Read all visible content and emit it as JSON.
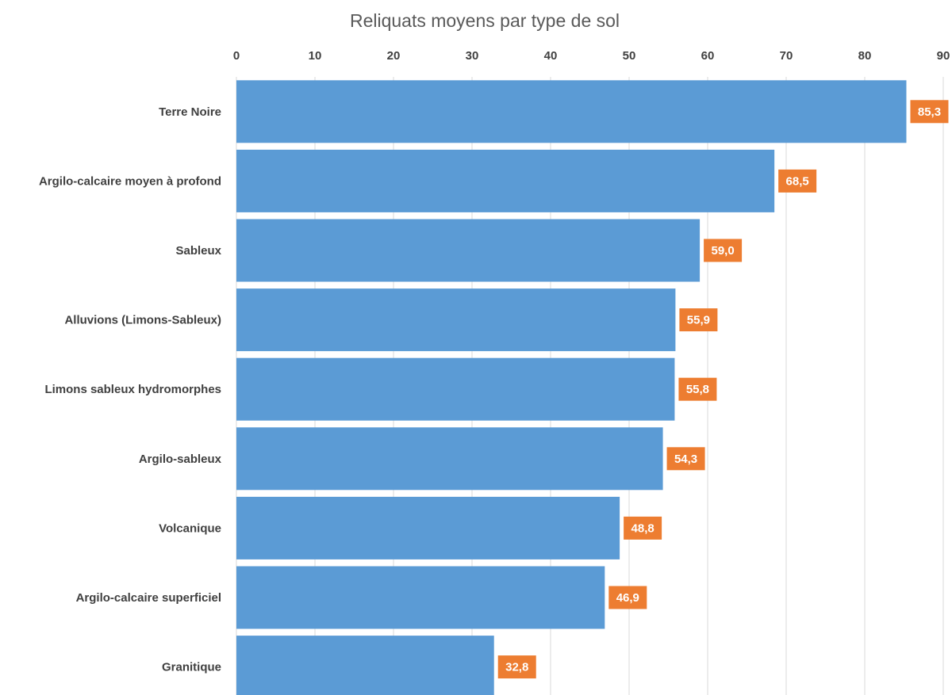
{
  "chart_data": {
    "type": "bar",
    "orientation": "horizontal",
    "title": "Reliquats moyens par type de sol",
    "xlabel": "",
    "ylabel": "",
    "xlim": [
      0,
      90
    ],
    "x_ticks": [
      0,
      10,
      20,
      30,
      40,
      50,
      60,
      70,
      80,
      90
    ],
    "x_axis_position": "top",
    "grid": true,
    "legend": "none",
    "categories": [
      "Terre Noire",
      "Argilo-calcaire moyen à profond",
      "Sableux",
      "Alluvions (Limons-Sableux)",
      "Limons sableux hydromorphes",
      "Argilo-sableux",
      "Volcanique",
      "Argilo-calcaire superficiel",
      "Granitique"
    ],
    "values": [
      85.3,
      68.5,
      59.0,
      55.9,
      55.8,
      54.3,
      48.8,
      46.9,
      32.8
    ],
    "data_labels": [
      "85,3",
      "68,5",
      "59,0",
      "55,9",
      "55,8",
      "54,3",
      "48,8",
      "46,9",
      "32,8"
    ],
    "colors": {
      "bar": "#5b9bd5",
      "data_label_background": "#ed7d31",
      "grid": "#d9d9d9",
      "text": "#404040",
      "title": "#595959"
    }
  }
}
